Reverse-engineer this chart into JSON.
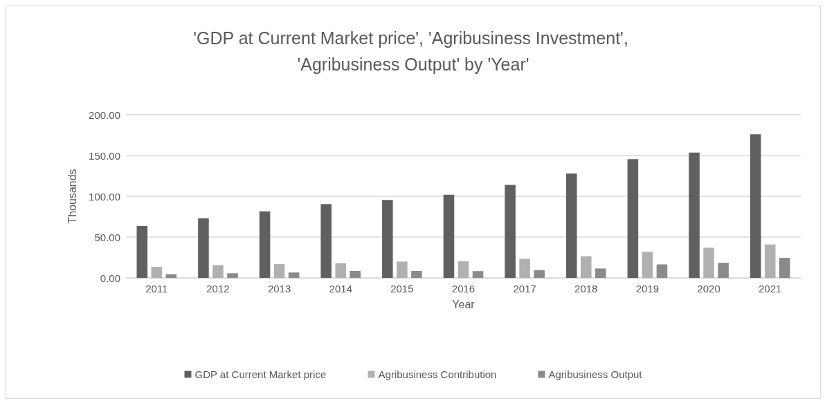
{
  "chart_data": {
    "type": "bar",
    "title": "'GDP at Current Market price', 'Agribusiness Investment', 'Agribusiness Output' by 'Year'",
    "xlabel": "Year",
    "ylabel": "Thousands",
    "categories": [
      "2011",
      "2012",
      "2013",
      "2014",
      "2015",
      "2016",
      "2017",
      "2018",
      "2019",
      "2020",
      "2021"
    ],
    "series": [
      {
        "name": "GDP at Current Market price",
        "color": "#606060",
        "values": [
          63.5,
          73,
          81.5,
          90.5,
          95.5,
          102,
          114,
          128,
          145.5,
          153.5,
          176
        ]
      },
      {
        "name": "Agribusiness Contribution",
        "color": "#b0b0b0",
        "values": [
          13.6,
          15.7,
          16.9,
          18,
          20,
          20.5,
          23.5,
          26.5,
          32,
          37,
          41
        ]
      },
      {
        "name": "Agribusiness Output",
        "color": "#8a8a8a",
        "values": [
          4.5,
          5.7,
          6.6,
          8.5,
          8.5,
          8.3,
          9.5,
          11.5,
          16.5,
          18.5,
          24.5
        ]
      }
    ],
    "ylim": [
      0,
      200
    ],
    "yticks": [
      {
        "value": 0,
        "label": "0.00"
      },
      {
        "value": 50,
        "label": "50.00"
      },
      {
        "value": 100,
        "label": "100.00"
      },
      {
        "value": 150,
        "label": "150.00"
      },
      {
        "value": 200,
        "label": "200.00"
      }
    ],
    "grid": "y",
    "legend": "bottom"
  }
}
